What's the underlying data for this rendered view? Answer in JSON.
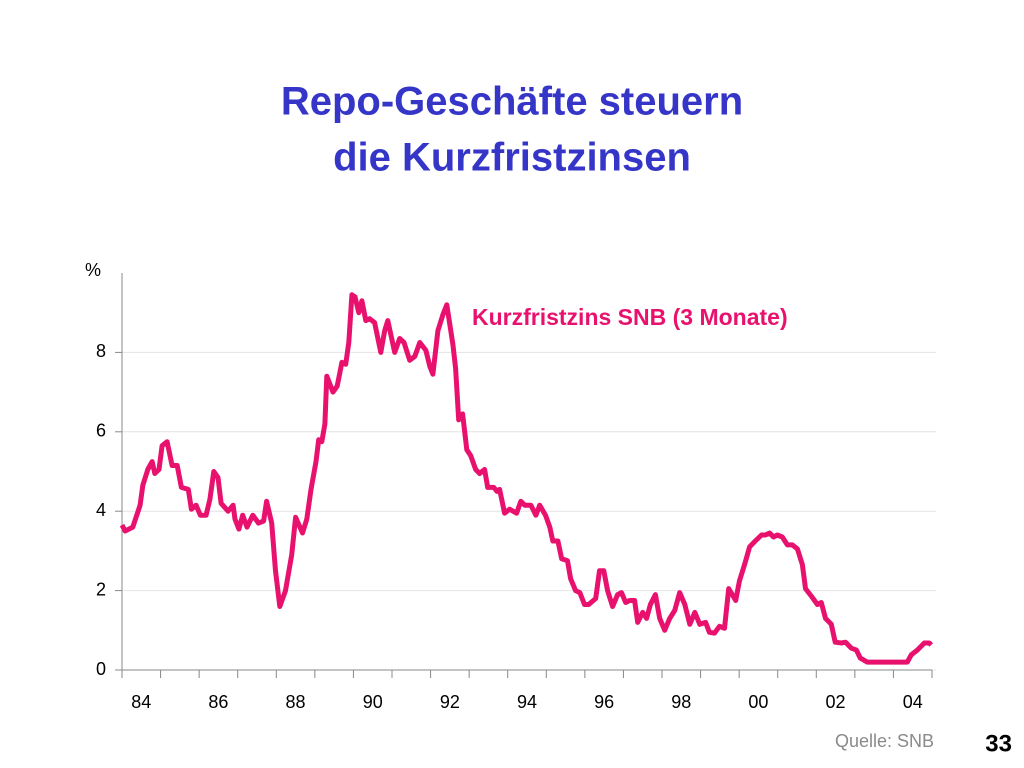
{
  "chart_data": {
    "type": "line",
    "title": "Repo-Geschäfte steuern",
    "subtitle": "die Kurzfristzinsen",
    "y_label": "%",
    "source": "Quelle: SNB",
    "page_number": "33",
    "xlim": [
      1984,
      2005
    ],
    "xticks": [
      {
        "value": 1984.5,
        "label": "84"
      },
      {
        "value": 1986.5,
        "label": "86"
      },
      {
        "value": 1988.5,
        "label": "88"
      },
      {
        "value": 1990.5,
        "label": "90"
      },
      {
        "value": 1992.5,
        "label": "92"
      },
      {
        "value": 1994.5,
        "label": "94"
      },
      {
        "value": 1996.5,
        "label": "96"
      },
      {
        "value": 1998.5,
        "label": "98"
      },
      {
        "value": 2000.5,
        "label": "00"
      },
      {
        "value": 2002.5,
        "label": "02"
      },
      {
        "value": 2004.5,
        "label": "04"
      }
    ],
    "xticks_minor": [
      1984,
      1985,
      1986,
      1987,
      1988,
      1989,
      1990,
      1991,
      1992,
      1993,
      1994,
      1995,
      1996,
      1997,
      1998,
      1999,
      2000,
      2001,
      2002,
      2003,
      2004,
      2005
    ],
    "ylim": [
      0,
      10
    ],
    "yticks": [
      0,
      2,
      4,
      6,
      8
    ],
    "grid": true,
    "x": [
      1984.0,
      1984.08,
      1984.28,
      1984.47,
      1984.54,
      1984.67,
      1984.78,
      1984.85,
      1984.96,
      1985.04,
      1985.17,
      1985.3,
      1985.43,
      1985.54,
      1985.72,
      1985.8,
      1985.92,
      1986.03,
      1986.18,
      1986.28,
      1986.38,
      1986.49,
      1986.57,
      1986.75,
      1986.88,
      1986.93,
      1987.03,
      1987.13,
      1987.24,
      1987.39,
      1987.54,
      1987.67,
      1987.75,
      1987.88,
      1987.98,
      1988.09,
      1988.24,
      1988.4,
      1988.5,
      1988.68,
      1988.79,
      1988.9,
      1989.03,
      1989.1,
      1989.18,
      1989.26,
      1989.31,
      1989.47,
      1989.58,
      1989.7,
      1989.8,
      1989.88,
      1989.96,
      1990.04,
      1990.14,
      1990.22,
      1990.32,
      1990.42,
      1990.55,
      1990.71,
      1990.81,
      1990.89,
      1991.07,
      1991.2,
      1991.31,
      1991.46,
      1991.59,
      1991.72,
      1991.88,
      1991.98,
      1992.06,
      1992.19,
      1992.32,
      1992.42,
      1992.58,
      1992.65,
      1992.73,
      1992.83,
      1992.94,
      1993.04,
      1993.17,
      1993.27,
      1993.4,
      1993.48,
      1993.64,
      1993.72,
      1993.79,
      1993.92,
      1994.05,
      1994.23,
      1994.34,
      1994.44,
      1994.6,
      1994.73,
      1994.83,
      1994.98,
      1995.09,
      1995.17,
      1995.3,
      1995.4,
      1995.55,
      1995.63,
      1995.76,
      1995.87,
      1995.99,
      1996.1,
      1996.28,
      1996.38,
      1996.49,
      1996.59,
      1996.72,
      1996.85,
      1996.95,
      1997.06,
      1997.16,
      1997.29,
      1997.37,
      1997.5,
      1997.6,
      1997.7,
      1997.83,
      1997.94,
      1998.07,
      1998.2,
      1998.33,
      1998.46,
      1998.59,
      1998.72,
      1998.85,
      1998.98,
      1999.13,
      1999.23,
      1999.36,
      1999.49,
      1999.62,
      1999.73,
      1999.91,
      2000.01,
      2000.14,
      2000.27,
      2000.42,
      2000.58,
      2000.68,
      2000.79,
      2000.89,
      2000.99,
      2001.12,
      2001.25,
      2001.38,
      2001.51,
      2001.64,
      2001.72,
      2001.88,
      2002.03,
      2002.13,
      2002.24,
      2002.39,
      2002.49,
      2002.65,
      2002.76,
      2002.91,
      2003.04,
      2003.14,
      2003.32,
      2003.5,
      2004.36,
      2004.46,
      2004.62,
      2004.8,
      2004.93,
      2004.98
    ],
    "series": [
      {
        "name": "Kurzfristzins SNB (3 Monate)",
        "color": "#e8126e",
        "values": [
          3.65,
          3.5,
          3.6,
          4.15,
          4.65,
          5.05,
          5.25,
          4.95,
          5.05,
          5.65,
          5.75,
          5.15,
          5.15,
          4.6,
          4.55,
          4.05,
          4.15,
          3.9,
          3.9,
          4.3,
          5.0,
          4.85,
          4.2,
          4.0,
          4.15,
          3.8,
          3.55,
          3.9,
          3.6,
          3.9,
          3.7,
          3.75,
          4.25,
          3.7,
          2.5,
          1.6,
          2.0,
          2.9,
          3.85,
          3.45,
          3.8,
          4.55,
          5.25,
          5.8,
          5.75,
          6.2,
          7.4,
          7.0,
          7.15,
          7.75,
          7.7,
          8.25,
          9.45,
          9.4,
          9.0,
          9.3,
          8.8,
          8.85,
          8.75,
          8.0,
          8.55,
          8.8,
          8.0,
          8.35,
          8.25,
          7.8,
          7.9,
          8.25,
          8.05,
          7.65,
          7.45,
          8.55,
          8.95,
          9.2,
          8.2,
          7.6,
          6.3,
          6.45,
          5.55,
          5.4,
          5.05,
          4.95,
          5.05,
          4.6,
          4.6,
          4.5,
          4.55,
          3.95,
          4.05,
          3.95,
          4.25,
          4.15,
          4.15,
          3.9,
          4.15,
          3.9,
          3.6,
          3.25,
          3.25,
          2.8,
          2.75,
          2.3,
          2.0,
          1.95,
          1.65,
          1.65,
          1.8,
          2.5,
          2.5,
          2.0,
          1.6,
          1.9,
          1.95,
          1.7,
          1.75,
          1.75,
          1.2,
          1.45,
          1.3,
          1.65,
          1.9,
          1.3,
          1.0,
          1.3,
          1.5,
          1.95,
          1.65,
          1.15,
          1.45,
          1.15,
          1.2,
          0.95,
          0.93,
          1.1,
          1.05,
          2.05,
          1.75,
          2.25,
          2.65,
          3.1,
          3.25,
          3.4,
          3.4,
          3.45,
          3.35,
          3.4,
          3.35,
          3.15,
          3.15,
          3.05,
          2.65,
          2.05,
          1.85,
          1.65,
          1.7,
          1.3,
          1.15,
          0.7,
          0.68,
          0.7,
          0.55,
          0.5,
          0.3,
          0.2,
          0.2,
          0.2,
          0.38,
          0.5,
          0.68,
          0.68,
          0.63
        ]
      }
    ]
  }
}
